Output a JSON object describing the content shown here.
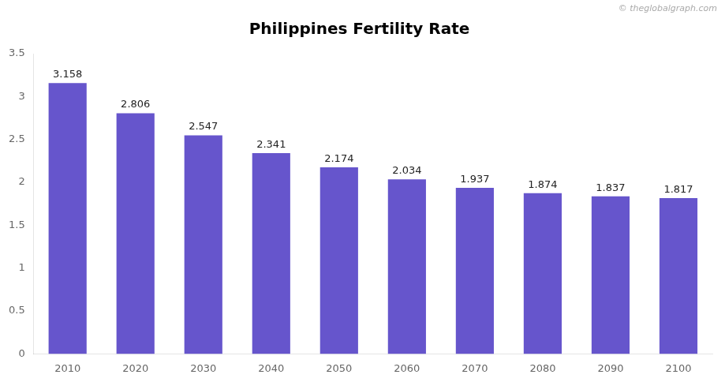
{
  "chart_data": {
    "type": "bar",
    "title": "Philippines Fertility Rate",
    "categories": [
      "2010",
      "2020",
      "2030",
      "2040",
      "2050",
      "2060",
      "2070",
      "2080",
      "2090",
      "2100"
    ],
    "values": [
      3.158,
      2.806,
      2.547,
      2.341,
      2.174,
      2.034,
      1.937,
      1.874,
      1.837,
      1.817
    ],
    "color": "#6655cc",
    "ylim": [
      0,
      3.5
    ],
    "yticks": [
      0,
      0.5,
      1,
      1.5,
      2,
      2.5,
      3,
      3.5
    ],
    "grid": false,
    "data_labels": true,
    "annotations": [
      "© theglobalgraph.com"
    ]
  }
}
